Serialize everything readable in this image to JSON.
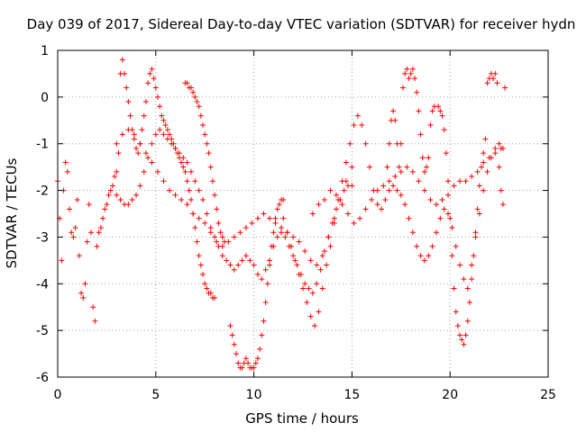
{
  "chart_data": {
    "type": "scatter",
    "title": "Day 039 of 2017, Sidereal Day-to-day VTEC variation (SDTVAR) for receiver hydn",
    "xlabel": "GPS time / hours",
    "ylabel": "SDTVAR / TECUs",
    "xlim": [
      0,
      25
    ],
    "ylim": [
      -6,
      1
    ],
    "xticks": [
      0,
      5,
      10,
      15,
      20,
      25
    ],
    "yticks": [
      -6,
      -5,
      -4,
      -3,
      -2,
      -1,
      0,
      1
    ],
    "grid": true,
    "marker": "+",
    "color": "#ff0000",
    "series": [
      {
        "x": [
          0.0,
          0.1,
          0.2,
          0.3,
          0.4,
          0.5,
          0.6,
          0.7,
          0.8,
          0.9,
          1.0,
          1.1,
          1.2,
          1.3,
          1.4,
          1.5,
          1.6,
          1.7,
          1.8,
          1.9,
          2.0,
          2.1,
          2.2,
          2.3,
          2.4,
          2.5,
          2.6,
          2.7,
          2.8,
          2.9,
          3.0,
          3.1,
          3.2,
          3.3,
          3.4,
          3.5,
          3.6,
          3.7,
          3.8,
          3.9,
          4.0,
          4.1,
          4.2,
          4.3,
          4.4,
          4.5,
          4.6,
          4.7,
          4.8,
          4.9,
          5.0,
          5.1,
          5.2,
          5.3,
          5.4,
          5.5,
          5.6,
          5.7,
          5.8,
          5.9,
          6.0,
          6.1,
          6.2,
          6.3,
          6.4,
          6.5,
          6.6,
          6.7,
          6.8,
          6.9,
          7.0,
          7.1,
          7.2,
          7.3,
          7.4,
          7.5,
          7.6,
          7.7,
          7.8,
          7.9,
          8.0
        ],
        "y": [
          -1.8,
          -2.6,
          -3.5,
          -2.0,
          -1.4,
          -1.6,
          -2.4,
          -2.9,
          -3.0,
          -2.8,
          -2.2,
          -3.4,
          -4.2,
          -4.3,
          -4.0,
          -3.1,
          -2.3,
          -2.9,
          -4.5,
          -4.8,
          -3.2,
          -2.9,
          -2.8,
          -2.6,
          -2.4,
          -2.3,
          -2.1,
          -2.0,
          -1.9,
          -1.7,
          -1.6,
          -1.2,
          0.5,
          0.8,
          0.5,
          0.2,
          -0.1,
          -0.4,
          -0.7,
          -0.9,
          -1.1,
          -1.2,
          -1.0,
          -0.7,
          -0.4,
          -0.1,
          0.3,
          0.5,
          0.6,
          0.4,
          0.2,
          0.0,
          -0.2,
          -0.4,
          -0.5,
          -0.6,
          -0.7,
          -0.8,
          -0.9,
          -1.0,
          -1.1,
          -1.2,
          -1.3,
          -1.4,
          -1.5,
          -1.6,
          -1.8,
          -2.0,
          -2.2,
          -2.5,
          -2.8,
          -3.1,
          -3.4,
          -3.6,
          -3.8,
          -4.0,
          -4.1,
          -4.2,
          -4.2,
          -4.3,
          -4.3
        ]
      },
      {
        "x": [
          3.0,
          3.2,
          3.4,
          3.6,
          3.8,
          4.0,
          4.2,
          4.4,
          4.6,
          4.8,
          5.0,
          5.2,
          5.4,
          5.6,
          5.8,
          6.0,
          6.2,
          6.4,
          6.6,
          6.8,
          7.0,
          7.2,
          7.4,
          7.6,
          7.8,
          8.0,
          8.2,
          8.4,
          8.6,
          8.8,
          9.0,
          9.2,
          9.4,
          9.6,
          9.8,
          10.0,
          10.2,
          10.4,
          10.6,
          10.8,
          11.0,
          11.2,
          11.4,
          11.6,
          11.8,
          12.0,
          12.2,
          12.4,
          12.6,
          12.8,
          13.0,
          13.2,
          13.4,
          13.6,
          13.8,
          14.0,
          14.2,
          14.4,
          14.6,
          14.8,
          15.0
        ],
        "y": [
          -2.1,
          -2.2,
          -2.3,
          -2.3,
          -2.2,
          -2.1,
          -1.9,
          -1.6,
          -1.3,
          -1.0,
          -0.8,
          -0.7,
          -0.8,
          -0.9,
          -1.0,
          -1.1,
          -1.2,
          -1.3,
          -1.4,
          -1.6,
          -1.8,
          -2.0,
          -2.2,
          -2.5,
          -2.8,
          -3.0,
          -3.2,
          -3.4,
          -3.5,
          -3.6,
          -3.7,
          -3.6,
          -3.5,
          -3.4,
          -3.5,
          -3.6,
          -3.8,
          -3.9,
          -3.7,
          -3.5,
          -3.2,
          -3.0,
          -2.9,
          -3.0,
          -3.2,
          -3.4,
          -3.6,
          -3.8,
          -4.0,
          -4.1,
          -4.2,
          -4.0,
          -3.7,
          -3.3,
          -3.0,
          -2.7,
          -2.4,
          -2.2,
          -2.0,
          -1.9,
          -1.9
        ]
      },
      {
        "x": [
          3.0,
          3.3,
          3.6,
          3.9,
          4.2,
          4.5,
          4.8,
          5.1,
          5.4,
          5.7,
          6.0,
          6.3,
          6.6,
          6.9,
          7.2,
          7.5,
          7.8,
          8.1,
          8.4,
          8.7,
          9.0,
          9.3,
          9.6,
          9.9,
          10.2,
          10.5,
          10.8,
          11.1,
          11.4,
          11.7,
          12.0,
          12.3,
          12.6,
          12.9,
          13.2,
          13.5,
          13.8,
          14.1,
          14.4,
          14.7,
          15.0
        ],
        "y": [
          -1.0,
          -0.8,
          -0.7,
          -0.8,
          -1.0,
          -1.2,
          -1.4,
          -1.6,
          -1.8,
          -2.0,
          -2.1,
          -2.2,
          -2.3,
          -2.5,
          -2.6,
          -2.7,
          -2.9,
          -3.1,
          -3.2,
          -3.1,
          -3.0,
          -2.9,
          -2.8,
          -2.7,
          -2.6,
          -2.5,
          -2.6,
          -2.7,
          -2.8,
          -2.9,
          -3.0,
          -3.1,
          -3.3,
          -3.5,
          -3.6,
          -3.4,
          -3.0,
          -2.6,
          -2.2,
          -1.8,
          -1.5
        ]
      },
      {
        "x": [
          6.5,
          6.6,
          6.7,
          6.8,
          6.9,
          7.0,
          7.1,
          7.2,
          7.3,
          7.4,
          7.5,
          7.6,
          7.7,
          7.8,
          7.9,
          8.0,
          8.1,
          8.2,
          8.3,
          8.4,
          8.5
        ],
        "y": [
          0.3,
          0.3,
          0.2,
          0.2,
          0.1,
          0.0,
          -0.1,
          -0.2,
          -0.4,
          -0.6,
          -0.8,
          -1.0,
          -1.2,
          -1.5,
          -1.8,
          -2.1,
          -2.4,
          -2.7,
          -2.9,
          -3.0,
          -3.1
        ]
      },
      {
        "x": [
          8.8,
          8.9,
          9.0,
          9.1,
          9.2,
          9.3,
          9.4,
          9.5,
          9.6,
          9.7,
          9.8,
          9.9,
          10.0,
          10.1,
          10.2,
          10.3,
          10.4,
          10.5,
          10.6,
          10.7,
          10.8,
          10.9,
          11.0,
          11.1,
          11.2,
          11.3,
          11.4,
          11.5
        ],
        "y": [
          -4.9,
          -5.1,
          -5.3,
          -5.5,
          -5.7,
          -5.8,
          -5.8,
          -5.7,
          -5.6,
          -5.7,
          -5.8,
          -5.8,
          -5.8,
          -5.7,
          -5.6,
          -5.4,
          -5.1,
          -4.8,
          -4.4,
          -4.0,
          -3.6,
          -3.2,
          -2.9,
          -2.6,
          -2.4,
          -2.3,
          -2.2,
          -2.2
        ]
      },
      {
        "x": [
          11.5,
          11.7,
          11.9,
          12.1,
          12.3,
          12.5,
          12.7,
          12.9,
          13.1,
          13.3,
          13.5,
          13.7,
          13.9,
          14.1,
          14.3,
          14.5,
          14.7,
          14.9,
          15.1,
          15.3,
          15.5,
          15.7,
          15.9,
          16.1,
          16.3,
          16.5,
          16.7,
          16.9,
          17.1,
          17.3,
          17.5,
          17.7,
          17.9,
          18.1,
          18.3,
          18.5,
          18.7,
          18.9,
          19.1,
          19.3,
          19.5,
          19.7,
          19.9,
          20.1,
          20.3,
          20.5,
          20.7,
          20.9,
          21.1,
          21.3,
          21.5,
          21.7,
          21.9,
          22.1,
          22.3,
          22.5,
          22.7
        ],
        "y": [
          -2.6,
          -2.9,
          -3.2,
          -3.5,
          -3.8,
          -4.1,
          -4.4,
          -4.7,
          -4.9,
          -4.6,
          -4.1,
          -3.6,
          -3.2,
          -2.7,
          -2.2,
          -1.8,
          -1.4,
          -1.0,
          -0.6,
          -0.4,
          -0.6,
          -1.0,
          -1.5,
          -2.0,
          -2.3,
          -2.4,
          -2.2,
          -2.0,
          -1.9,
          -2.0,
          -2.1,
          -2.3,
          -2.6,
          -2.9,
          -3.2,
          -3.4,
          -3.5,
          -3.4,
          -3.2,
          -2.9,
          -2.6,
          -2.4,
          -2.5,
          -2.8,
          -3.2,
          -3.6,
          -3.9,
          -4.1,
          -3.6,
          -3.0,
          -2.5,
          -2.0,
          -1.6,
          -1.3,
          -1.1,
          -1.0,
          -1.1
        ]
      },
      {
        "x": [
          13.0,
          13.3,
          13.6,
          13.9,
          14.2,
          14.5,
          14.8,
          15.1,
          15.4,
          15.7,
          16.0,
          16.3,
          16.6,
          16.9,
          17.2,
          17.5,
          17.8,
          18.1,
          18.4,
          18.7,
          19.0,
          19.3,
          19.6,
          19.9,
          20.2,
          20.5,
          20.8,
          21.1,
          21.4,
          21.7,
          22.0,
          22.3,
          22.6
        ],
        "y": [
          -2.5,
          -2.3,
          -2.2,
          -2.0,
          -2.1,
          -2.3,
          -2.5,
          -2.7,
          -2.6,
          -2.4,
          -2.2,
          -2.0,
          -1.9,
          -1.8,
          -1.7,
          -1.6,
          -1.5,
          -1.6,
          -1.8,
          -2.0,
          -2.2,
          -2.3,
          -2.2,
          -2.1,
          -1.9,
          -1.8,
          -1.8,
          -1.7,
          -1.6,
          -1.4,
          -1.3,
          -1.2,
          -1.1
        ]
      },
      {
        "x": [
          16.8,
          16.9,
          17.0,
          17.1,
          17.2,
          17.3,
          17.4,
          17.5,
          17.6,
          17.7,
          17.8,
          17.9,
          18.0,
          18.1,
          18.2,
          18.3,
          18.4,
          18.5,
          18.6,
          18.7,
          18.8,
          18.9,
          19.0,
          19.1,
          19.2
        ],
        "y": [
          -1.5,
          -1.0,
          -0.5,
          -0.3,
          -0.5,
          -1.0,
          -1.5,
          -1.0,
          0.2,
          0.5,
          0.6,
          0.4,
          0.5,
          0.6,
          0.4,
          0.1,
          -0.3,
          -0.8,
          -1.3,
          -1.6,
          -1.5,
          -1.3,
          -0.6,
          -0.3,
          -0.2
        ]
      },
      {
        "x": [
          19.4,
          19.5,
          19.6,
          19.7,
          19.8,
          19.9,
          20.0,
          20.1,
          20.2,
          20.3,
          20.4,
          20.5,
          20.6,
          20.7,
          20.8,
          20.9,
          21.0,
          21.1,
          21.2,
          21.3,
          21.4,
          21.5,
          21.6,
          21.7,
          21.8,
          21.9,
          22.0,
          22.1,
          22.2,
          22.3,
          22.4,
          22.5,
          22.6,
          22.7,
          22.8
        ],
        "y": [
          -0.2,
          -0.3,
          -0.4,
          -0.7,
          -1.2,
          -1.8,
          -2.6,
          -3.4,
          -4.1,
          -4.6,
          -4.9,
          -5.1,
          -5.2,
          -5.3,
          -5.1,
          -4.8,
          -4.4,
          -3.9,
          -3.4,
          -2.9,
          -2.4,
          -1.9,
          -1.5,
          -1.2,
          -0.9,
          0.3,
          0.4,
          0.5,
          0.4,
          0.5,
          0.3,
          -1.5,
          -2.0,
          -2.3,
          0.2
        ]
      }
    ]
  }
}
